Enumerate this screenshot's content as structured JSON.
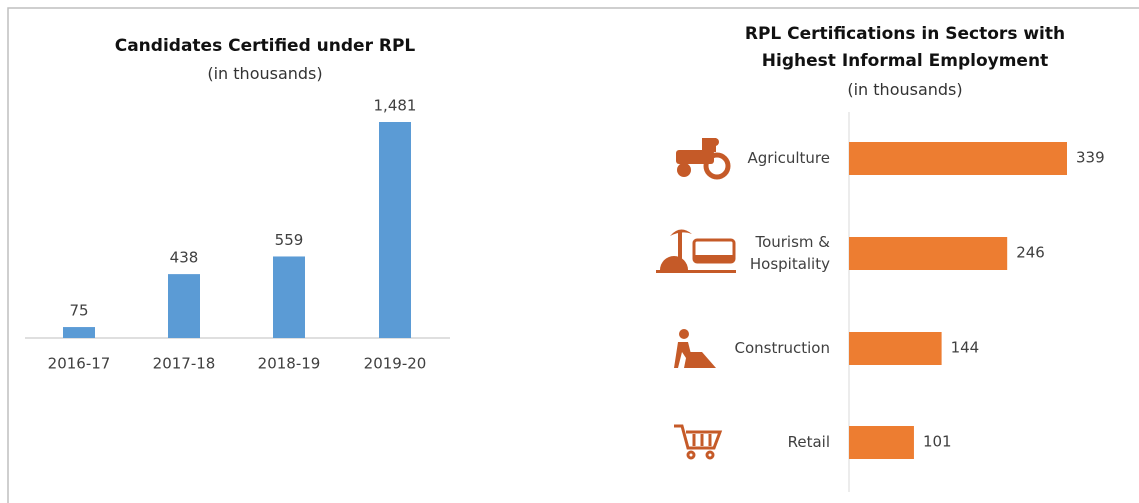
{
  "chart_data": [
    {
      "type": "bar",
      "title": "Candidates Certified under RPL",
      "subtitle": "(in thousands)",
      "categories": [
        "2016-17",
        "2017-18",
        "2018-19",
        "2019-20"
      ],
      "values": [
        75,
        438,
        559,
        1481
      ],
      "value_labels": [
        "75",
        "438",
        "559",
        "1,481"
      ],
      "color": "#5b9bd5"
    },
    {
      "type": "barh",
      "title": "RPL Certifications in Sectors with Highest Informal Employment",
      "subtitle": "(in thousands)",
      "categories": [
        "Agriculture",
        "Tourism & Hospitality",
        "Construction",
        "Retail"
      ],
      "values": [
        339,
        246,
        144,
        101
      ],
      "color": "#ed7d31"
    }
  ]
}
